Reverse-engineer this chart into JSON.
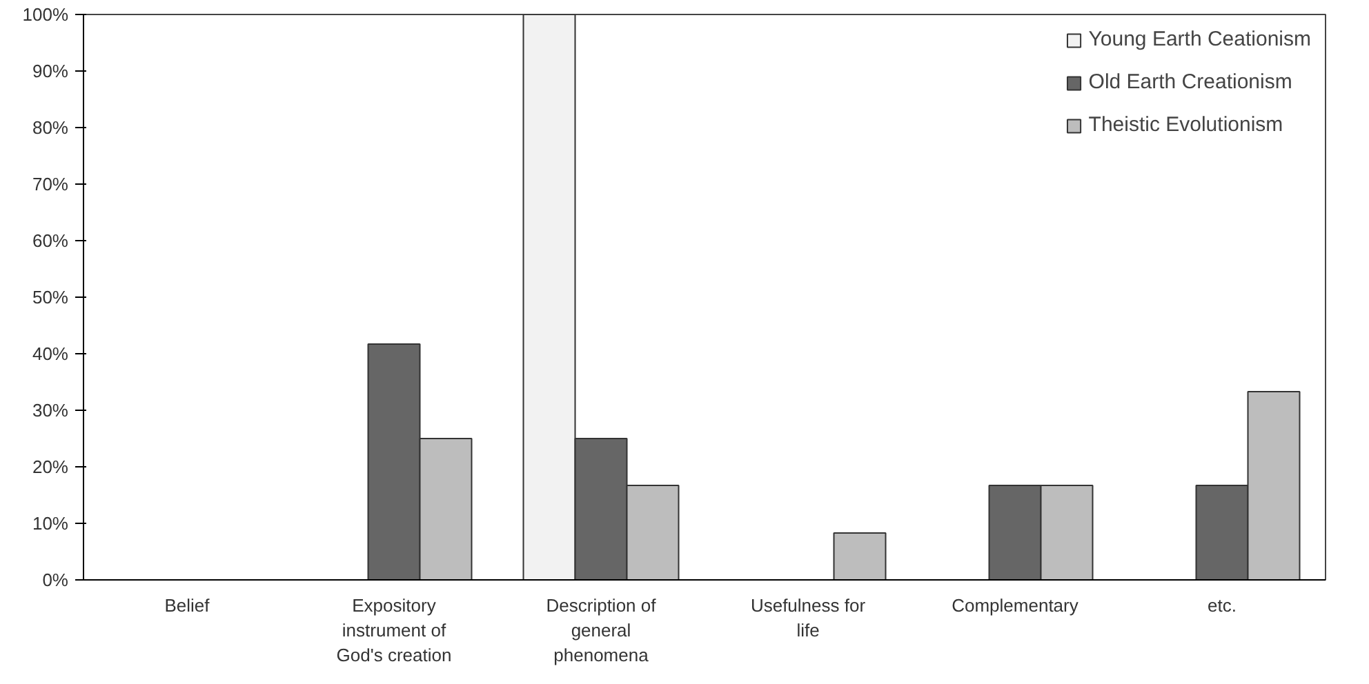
{
  "chart_data": {
    "type": "bar",
    "categories": [
      "Belief",
      "Expository instrument of God's creation",
      "Description of general phenomena",
      "Usefulness for life",
      "Complementary",
      "etc."
    ],
    "series": [
      {
        "name": "Young Earth Ceationism",
        "color": "#f2f2f2",
        "values": [
          null,
          null,
          100,
          null,
          null,
          null
        ]
      },
      {
        "name": "Old Earth Creationism",
        "color": "#666666",
        "values": [
          null,
          41.7,
          25,
          null,
          16.7,
          16.7
        ]
      },
      {
        "name": "Theistic Evolutionism",
        "color": "#bdbdbd",
        "values": [
          null,
          25,
          16.7,
          8.3,
          16.7,
          33.3
        ]
      }
    ],
    "ylim": [
      0,
      100
    ],
    "yticks": [
      {
        "value": 0,
        "label": "0%"
      },
      {
        "value": 10,
        "label": "10%"
      },
      {
        "value": 20,
        "label": "20%"
      },
      {
        "value": 30,
        "label": "30%"
      },
      {
        "value": 40,
        "label": "40%"
      },
      {
        "value": 50,
        "label": "50%"
      },
      {
        "value": 60,
        "label": "60%"
      },
      {
        "value": 70,
        "label": "70%"
      },
      {
        "value": 80,
        "label": "80%"
      },
      {
        "value": 90,
        "label": "90%"
      },
      {
        "value": 100,
        "label": "100%"
      }
    ],
    "grid": false,
    "legend": "top right"
  }
}
